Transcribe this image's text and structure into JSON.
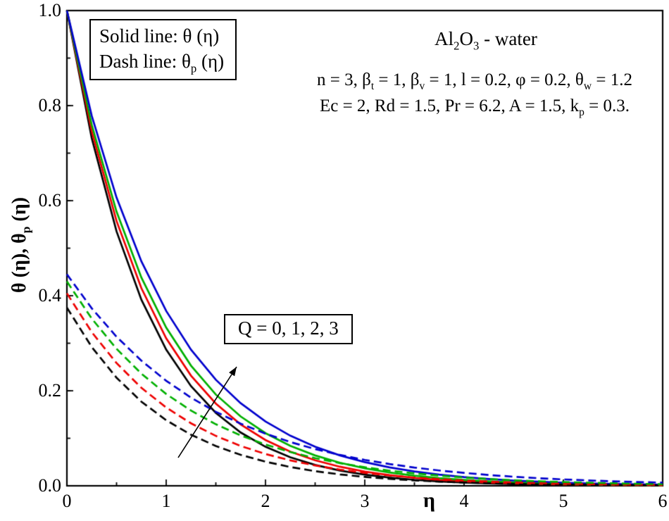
{
  "legend": {
    "solid_label": "Solid line:  θ (η)",
    "dash_label": "Dash  line: θ_{p} (η)"
  },
  "annotations": {
    "nanofluid": "Al_{2}O_{3} - water",
    "params_line1": "n = 3, β_{t} = 1, β_{v} = 1, l = 0.2, φ = 0.2, θ_{w} = 1.2",
    "params_line2": "Ec = 2, Rd = 1.5, Pr = 6.2, A = 1.5, k_{p} = 0.3.",
    "q_label": "Q = 0, 1, 2, 3"
  },
  "chart_data": {
    "type": "line",
    "title": "",
    "xlabel": "η",
    "ylabel_rich": "θ (η), θ_{p} (η)",
    "xlim": [
      0,
      6
    ],
    "ylim": [
      0,
      1
    ],
    "grid": false,
    "legend_position": "top-left-inside-box",
    "x_ticks": [
      0,
      1,
      2,
      3,
      4,
      5,
      6
    ],
    "x_tick_labels": [
      "0",
      "1",
      "2",
      "3",
      "4",
      "5",
      "6"
    ],
    "x_minor_step": 0.5,
    "y_ticks": [
      0,
      0.2,
      0.4,
      0.6,
      0.8,
      1.0
    ],
    "y_tick_labels": [
      "0.0",
      "0.2",
      "0.4",
      "0.6",
      "0.8",
      "1.0"
    ],
    "y_minor_step": 0.1,
    "colors": {
      "Q0": "#000000",
      "Q1": "#ee0000",
      "Q2": "#00b000",
      "Q3": "#0000cd"
    },
    "x": [
      0,
      0.25,
      0.5,
      0.75,
      1,
      1.25,
      1.5,
      1.75,
      2,
      2.25,
      2.5,
      2.75,
      3,
      3.25,
      3.5,
      3.75,
      4,
      4.25,
      4.5,
      4.75,
      5,
      5.25,
      5.5,
      5.75,
      6
    ],
    "series": [
      {
        "name": "theta Q=0",
        "style": "solid",
        "color": "#000000",
        "values": [
          1,
          0.7316,
          0.5353,
          0.3916,
          0.2865,
          0.2096,
          0.1534,
          0.1122,
          0.0821,
          0.0601,
          0.0439,
          0.0321,
          0.0235,
          0.0172,
          0.0126,
          0.0092,
          0.0067,
          0.0049,
          0.0036,
          0.0026,
          0.0019,
          0.0014,
          0.001,
          0.0008,
          0.0006
        ]
      },
      {
        "name": "theta Q=1",
        "style": "solid",
        "color": "#ee0000",
        "values": [
          1,
          0.7464,
          0.5571,
          0.4158,
          0.3104,
          0.2317,
          0.173,
          0.1291,
          0.0963,
          0.0719,
          0.0537,
          0.0401,
          0.0299,
          0.0223,
          0.0167,
          0.0124,
          0.0093,
          0.0069,
          0.0052,
          0.0039,
          0.0029,
          0.0022,
          0.0016,
          0.0012,
          0.0009
        ]
      },
      {
        "name": "theta Q=2",
        "style": "solid",
        "color": "#00b000",
        "values": [
          1,
          0.7596,
          0.5769,
          0.4382,
          0.3329,
          0.2528,
          0.192,
          0.1459,
          0.1108,
          0.0842,
          0.0639,
          0.0486,
          0.0369,
          0.028,
          0.0213,
          0.0162,
          0.0123,
          0.0093,
          0.0071,
          0.0054,
          0.0041,
          0.0031,
          0.0024,
          0.0018,
          0.0014
        ]
      },
      {
        "name": "theta Q=3",
        "style": "solid",
        "color": "#0000cd",
        "values": [
          1,
          0.7788,
          0.6065,
          0.4724,
          0.3679,
          0.2865,
          0.2231,
          0.1738,
          0.1353,
          0.1054,
          0.0821,
          0.0639,
          0.0498,
          0.0388,
          0.0302,
          0.0235,
          0.0183,
          0.0143,
          0.0111,
          0.0087,
          0.0067,
          0.0052,
          0.0041,
          0.0032,
          0.0025
        ]
      },
      {
        "name": "theta_p Q=0",
        "style": "dash",
        "color": "#000000",
        "values": [
          0.375,
          0.2921,
          0.2274,
          0.1771,
          0.138,
          0.1074,
          0.0837,
          0.0652,
          0.0507,
          0.0395,
          0.0308,
          0.024,
          0.0187,
          0.0145,
          0.0113,
          0.0088,
          0.0069,
          0.0054,
          0.0042,
          0.0032,
          0.0025,
          0.002,
          0.0015,
          0.0012,
          0.0009
        ]
      },
      {
        "name": "theta_p Q=1",
        "style": "dash",
        "color": "#ee0000",
        "values": [
          0.405,
          0.3234,
          0.2582,
          0.2062,
          0.1647,
          0.1315,
          0.105,
          0.0838,
          0.0669,
          0.0535,
          0.0427,
          0.0341,
          0.0272,
          0.0217,
          0.0174,
          0.0139,
          0.0111,
          0.0088,
          0.0071,
          0.0056,
          0.0045,
          0.0036,
          0.0029,
          0.0023,
          0.0018
        ]
      },
      {
        "name": "theta_p Q=2",
        "style": "dash",
        "color": "#00b000",
        "values": [
          0.43,
          0.352,
          0.2882,
          0.236,
          0.1932,
          0.1582,
          0.1295,
          0.106,
          0.0868,
          0.0711,
          0.0582,
          0.0477,
          0.039,
          0.0319,
          0.0261,
          0.0214,
          0.0175,
          0.0143,
          0.0117,
          0.0096,
          0.0079,
          0.0064,
          0.0053,
          0.0043,
          0.0035
        ]
      },
      {
        "name": "theta_p Q=3",
        "style": "dash",
        "color": "#0000cd",
        "values": [
          0.445,
          0.3736,
          0.3136,
          0.2633,
          0.221,
          0.1855,
          0.1557,
          0.1307,
          0.1097,
          0.0921,
          0.0773,
          0.0649,
          0.0545,
          0.0458,
          0.0384,
          0.0322,
          0.0271,
          0.0227,
          0.0191,
          0.016,
          0.0134,
          0.0113,
          0.0095,
          0.008,
          0.0067
        ]
      }
    ]
  }
}
